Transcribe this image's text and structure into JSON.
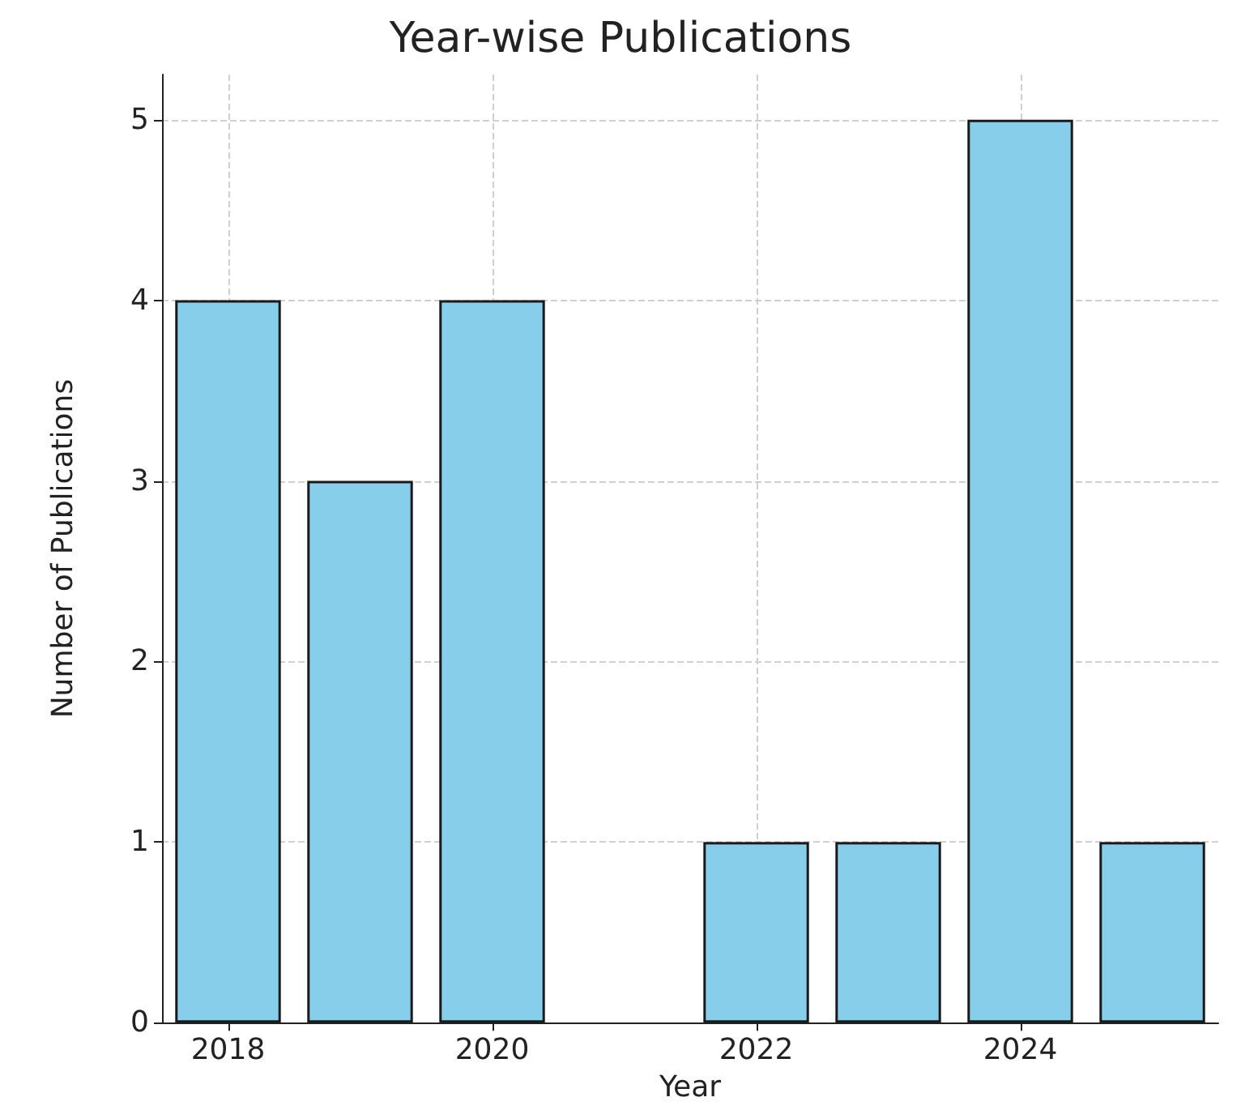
{
  "chart_data": {
    "type": "bar",
    "title": "Year-wise Publications",
    "xlabel": "Year",
    "ylabel": "Number of Publications",
    "x": [
      2018,
      2019,
      2020,
      2022,
      2023,
      2024,
      2025
    ],
    "values": [
      4,
      3,
      4,
      1,
      1,
      5,
      1
    ],
    "color": "#87ceeb",
    "xlim": [
      2017.5,
      2025.5
    ],
    "xticks": [
      2018,
      2020,
      2022,
      2024
    ],
    "ylim": [
      0,
      5.25
    ],
    "yticks": [
      0,
      1,
      2,
      3,
      4,
      5
    ],
    "grid": true
  }
}
